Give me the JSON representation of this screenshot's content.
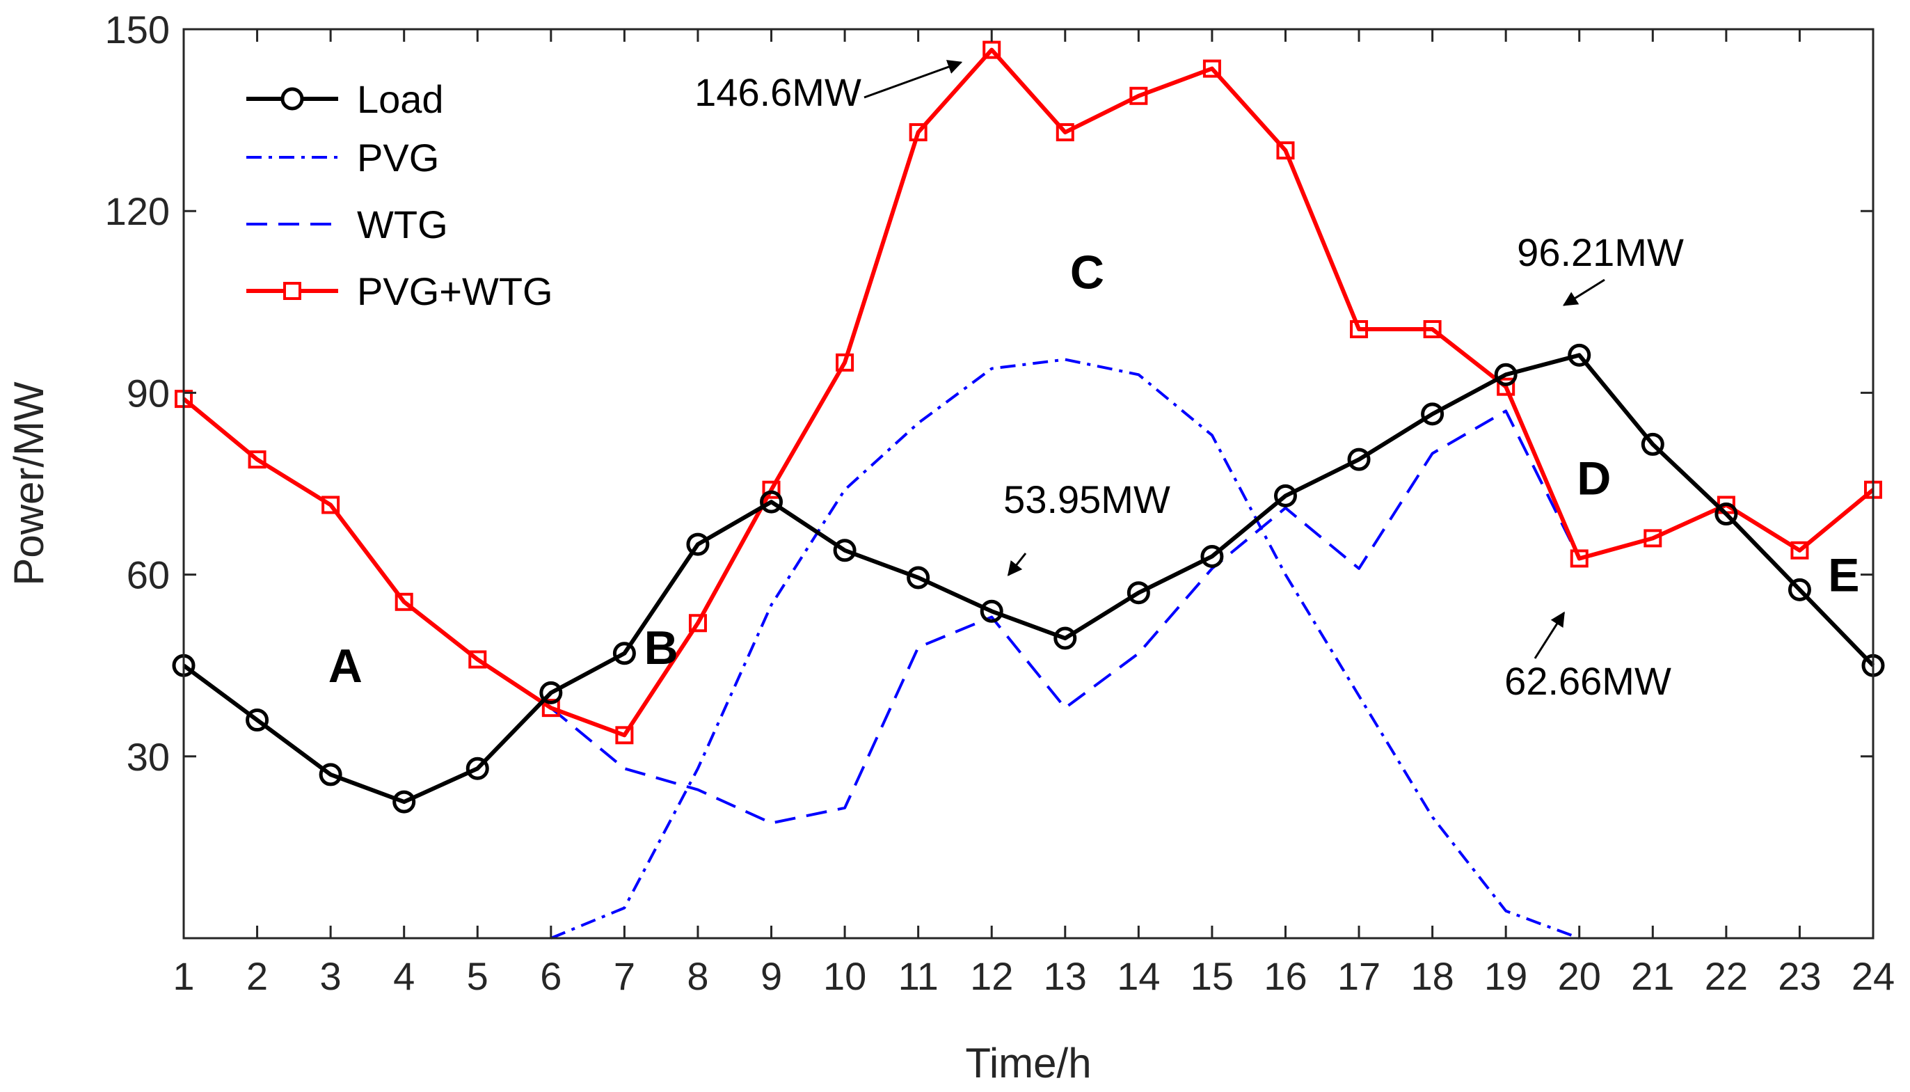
{
  "chart_data": {
    "type": "line",
    "title": "",
    "xlabel": "Time/h",
    "ylabel": "Power/MW",
    "x": [
      1,
      2,
      3,
      4,
      5,
      6,
      7,
      8,
      9,
      10,
      11,
      12,
      13,
      14,
      15,
      16,
      17,
      18,
      19,
      20,
      21,
      22,
      23,
      24
    ],
    "xlim": [
      1,
      24
    ],
    "ylim": [
      0,
      150
    ],
    "xticks": [
      "1",
      "2",
      "3",
      "4",
      "5",
      "6",
      "7",
      "8",
      "9",
      "10",
      "11",
      "12",
      "13",
      "14",
      "15",
      "16",
      "17",
      "18",
      "19",
      "20",
      "21",
      "22",
      "23",
      "24"
    ],
    "yticks": [
      30,
      60,
      90,
      120,
      150
    ],
    "yticklabels": [
      "30",
      "60",
      "90",
      "120",
      "150"
    ],
    "grid": false,
    "legend_position": "top-left",
    "series": [
      {
        "name": "Load",
        "color": "#000000",
        "line": "solid",
        "marker": "circle",
        "x": [
          1,
          2,
          3,
          4,
          5,
          6,
          7,
          8,
          9,
          10,
          11,
          12,
          13,
          14,
          15,
          16,
          17,
          18,
          19,
          20,
          21,
          22,
          23,
          24
        ],
        "values": [
          45,
          36,
          27,
          22.5,
          28,
          40.5,
          47,
          65,
          72,
          64,
          59.5,
          53.95,
          49.5,
          57,
          63,
          73,
          79,
          86.5,
          93,
          96.21,
          81.5,
          70,
          57.5,
          45
        ]
      },
      {
        "name": "PVG",
        "color": "#0000ff",
        "line": "dashdot",
        "marker": "none",
        "x": [
          6,
          7,
          8,
          9,
          10,
          11,
          12,
          13,
          14,
          15,
          16,
          17,
          18,
          19,
          20
        ],
        "values": [
          0,
          5,
          28,
          55,
          74,
          85,
          94,
          95.5,
          93,
          83,
          60,
          40,
          20,
          4.5,
          0
        ]
      },
      {
        "name": "WTG",
        "color": "#0000ff",
        "line": "dashed",
        "marker": "none",
        "x": [
          6,
          7,
          8,
          9,
          10,
          11,
          12,
          13,
          14,
          15,
          16,
          17,
          18,
          19,
          20
        ],
        "values": [
          38,
          28,
          24.5,
          19,
          21.5,
          48,
          53,
          38,
          47,
          61,
          71,
          61,
          80,
          87,
          62.66
        ]
      },
      {
        "name": "PVG+WTG",
        "color": "#ff0000",
        "line": "solid",
        "marker": "square",
        "x": [
          1,
          2,
          3,
          4,
          5,
          6,
          7,
          8,
          9,
          10,
          11,
          12,
          13,
          14,
          15,
          16,
          17,
          18,
          19,
          20,
          21,
          22,
          23,
          24
        ],
        "values": [
          89,
          79,
          71.5,
          55.5,
          46,
          38,
          33.5,
          52,
          74,
          95,
          133,
          146.6,
          133,
          139,
          143.5,
          130,
          100.5,
          100.5,
          91,
          62.66,
          66,
          71.5,
          64,
          74
        ]
      }
    ],
    "annotations": [
      {
        "text": "146.6MW",
        "x": 12,
        "y": 146.6
      },
      {
        "text": "96.21MW",
        "x": 20,
        "y": 96.21
      },
      {
        "text": "53.95MW",
        "x": 12,
        "y": 53.95
      },
      {
        "text": "62.66MW",
        "x": 20,
        "y": 62.66
      }
    ],
    "regions": [
      {
        "text": "A",
        "x": 3.2,
        "y": 45
      },
      {
        "text": "B",
        "x": 7.5,
        "y": 48
      },
      {
        "text": "C",
        "x": 13.3,
        "y": 110
      },
      {
        "text": "D",
        "x": 20.2,
        "y": 76
      },
      {
        "text": "E",
        "x": 23.6,
        "y": 60
      }
    ]
  }
}
